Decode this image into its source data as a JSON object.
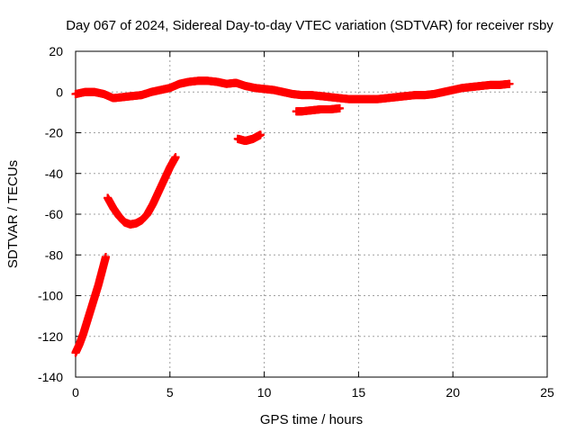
{
  "chart_data": {
    "type": "scatter",
    "title": "Day 067 of 2024, Sidereal Day-to-day VTEC variation (SDTVAR) for receiver rsby",
    "xlabel": "GPS time / hours",
    "ylabel": "SDTVAR / TECUs",
    "xlim": [
      0,
      25
    ],
    "ylim": [
      -140,
      20
    ],
    "xticks": [
      0,
      5,
      10,
      15,
      20,
      25
    ],
    "xtick_labels": [
      "0",
      "5",
      "10",
      "15",
      "20",
      "25"
    ],
    "yticks": [
      -140,
      -120,
      -100,
      -80,
      -60,
      -40,
      -20,
      0,
      20
    ],
    "ytick_labels": [
      "-140",
      "-120",
      "-100",
      "-80",
      "-60",
      "-40",
      "-20",
      "0",
      "20"
    ],
    "grid": true,
    "marker_color": "#ff0000",
    "marker": "plus",
    "series": [
      {
        "name": "main-arc",
        "x": [
          0.0,
          0.5,
          1.0,
          1.5,
          2.0,
          2.5,
          3.0,
          3.5,
          4.0,
          4.5,
          5.0,
          5.5,
          6.0,
          6.5,
          7.0,
          7.5,
          8.0,
          8.5,
          9.0,
          9.5,
          10.0,
          10.5,
          11.0,
          11.5,
          12.0,
          12.5,
          13.0,
          13.5,
          14.0,
          14.5,
          15.0,
          15.5,
          16.0,
          16.5,
          17.0,
          17.5,
          18.0,
          18.5,
          19.0,
          19.5,
          20.0,
          20.5,
          21.0,
          21.5,
          22.0,
          22.5,
          23.0
        ],
        "y": [
          -1,
          0,
          0,
          -1,
          -3,
          -2.5,
          -2,
          -1.5,
          0,
          1,
          2,
          4,
          5,
          5.5,
          5.5,
          5,
          4,
          4.5,
          3,
          2,
          1.5,
          1,
          0,
          -1,
          -1.5,
          -1.5,
          -2,
          -2.5,
          -3,
          -3.5,
          -3.5,
          -3.5,
          -3.5,
          -3,
          -2.5,
          -2,
          -1.5,
          -1.5,
          -1,
          0,
          1,
          2,
          2.5,
          3,
          3.5,
          3.5,
          4
        ]
      },
      {
        "name": "steep-rise",
        "x": [
          0.0,
          0.2,
          0.4,
          0.6,
          0.8,
          1.0,
          1.2,
          1.4,
          1.6
        ],
        "y": [
          -128,
          -124,
          -119,
          -113,
          -107,
          -101,
          -95,
          -88,
          -81
        ]
      },
      {
        "name": "u-curve",
        "x": [
          1.7,
          2.0,
          2.3,
          2.6,
          2.9,
          3.2,
          3.5,
          3.8,
          4.1,
          4.4,
          4.7,
          5.0,
          5.3
        ],
        "y": [
          -52,
          -57,
          -61,
          -64,
          -65,
          -64.5,
          -63,
          -60,
          -55,
          -49,
          -43,
          -37,
          -32
        ]
      },
      {
        "name": "short-dip",
        "x": [
          8.6,
          8.8,
          9.0,
          9.2,
          9.4,
          9.6,
          9.8
        ],
        "y": [
          -23,
          -23.5,
          -24,
          -23.5,
          -23,
          -22,
          -21
        ]
      },
      {
        "name": "offset-segment",
        "x": [
          11.7,
          12.0,
          12.5,
          13.0,
          13.5,
          14.0
        ],
        "y": [
          -9.5,
          -9.5,
          -9,
          -8.5,
          -8.5,
          -8
        ]
      }
    ]
  }
}
